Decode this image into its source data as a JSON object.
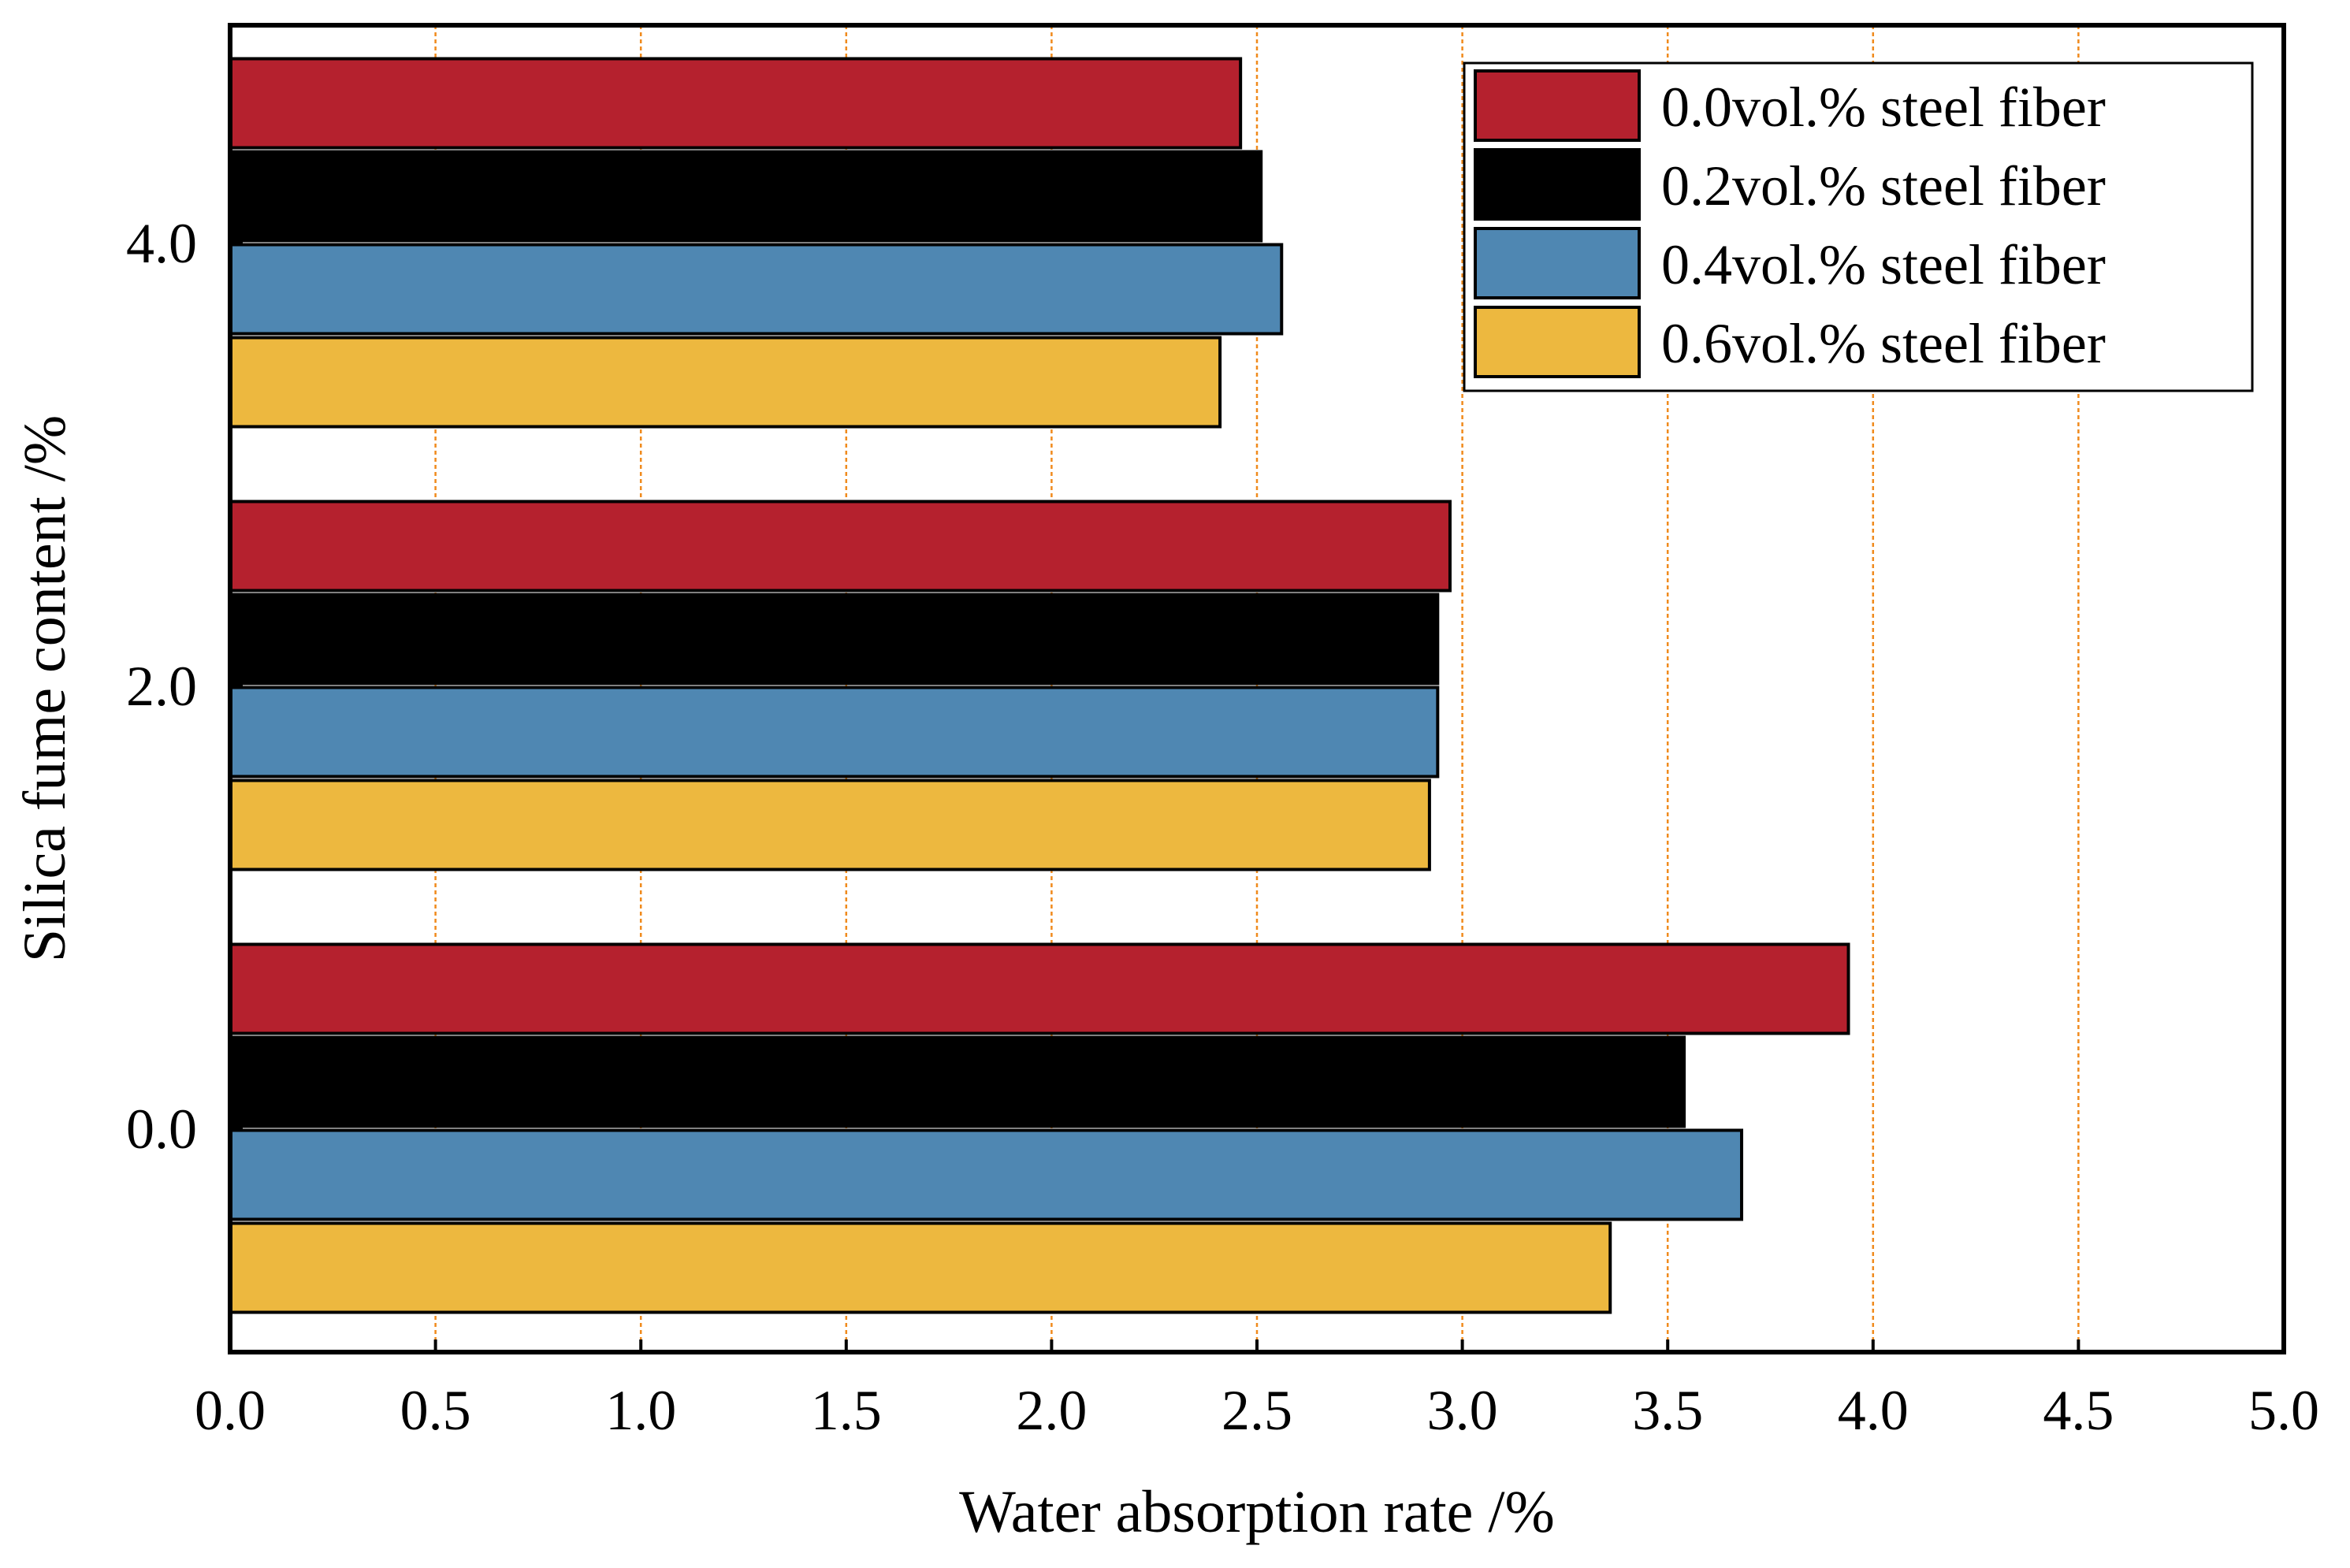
{
  "chart_data": {
    "type": "bar",
    "orientation": "horizontal",
    "title": "",
    "xlabel": "Water absorption rate /%",
    "ylabel": "Silica fume content /%",
    "xlim": [
      0.0,
      5.0
    ],
    "xticks": [
      "0.0",
      "0.5",
      "1.0",
      "1.5",
      "2.0",
      "2.5",
      "3.0",
      "3.5",
      "4.0",
      "4.5",
      "5.0"
    ],
    "categories": [
      "0.0",
      "2.0",
      "4.0"
    ],
    "series": [
      {
        "name": "0.0vol.% steel fiber",
        "color": "#b5212e",
        "values": [
          3.94,
          2.97,
          2.46
        ]
      },
      {
        "name": "0.2vol.% steel fiber",
        "color": "#000000",
        "values": [
          3.54,
          2.94,
          2.51
        ]
      },
      {
        "name": "0.4vol.% steel fiber",
        "color": "#4f87b2",
        "values": [
          3.68,
          2.94,
          2.56
        ]
      },
      {
        "name": "0.6vol.% steel fiber",
        "color": "#edb83f",
        "values": [
          3.36,
          2.92,
          2.41
        ]
      }
    ],
    "grid": "vertical",
    "grid_color": "#f08a1c",
    "legend_position": "top-right"
  }
}
